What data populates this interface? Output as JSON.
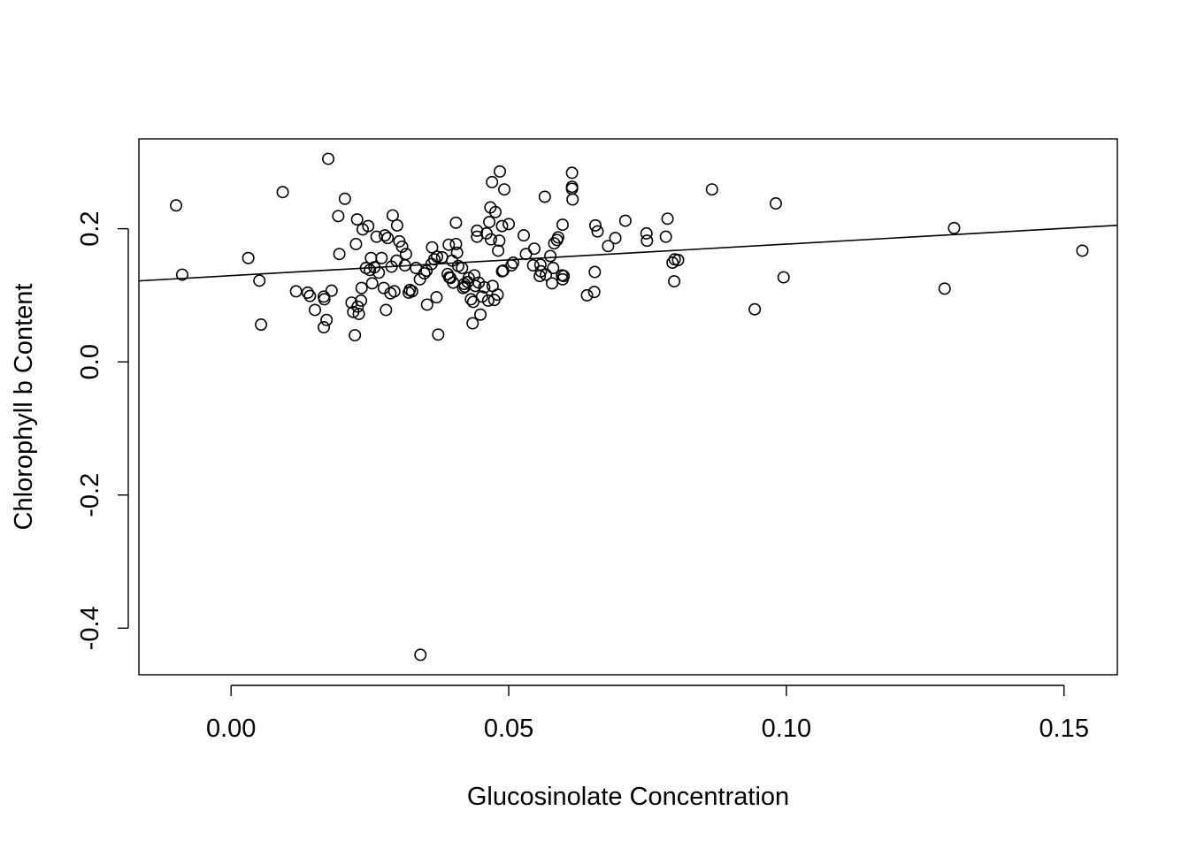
{
  "chart_data": {
    "type": "scatter",
    "title": "",
    "xlabel": "Glucosinolate Concentration",
    "ylabel": "Chlorophyll b Content",
    "xlim": [
      -0.0166,
      0.1596
    ],
    "ylim": [
      -0.47,
      0.335
    ],
    "x_ticks": [
      0.0,
      0.05,
      0.1,
      0.15
    ],
    "x_tick_labels": [
      "0.00",
      "0.05",
      "0.10",
      "0.15"
    ],
    "y_ticks": [
      -0.4,
      -0.2,
      0.0,
      0.2
    ],
    "y_tick_labels": [
      "-0.4",
      "-0.2",
      "0.0",
      "0.2"
    ],
    "grid": false,
    "regression_line": {
      "intercept": 0.1295,
      "slope": 0.4738
    },
    "points": {
      "x": [
        -0.0099,
        -0.0088,
        0.0031,
        0.0051,
        0.0054,
        0.0093,
        0.0117,
        0.0138,
        0.0142,
        0.0151,
        0.0167,
        0.0167,
        0.0168,
        0.0172,
        0.0175,
        0.0181,
        0.0193,
        0.0195,
        0.0205,
        0.0217,
        0.022,
        0.0223,
        0.0225,
        0.0227,
        0.0228,
        0.023,
        0.0234,
        0.0235,
        0.0237,
        0.0243,
        0.0247,
        0.025,
        0.0252,
        0.0254,
        0.0258,
        0.0262,
        0.0266,
        0.0271,
        0.0275,
        0.0277,
        0.0279,
        0.0282,
        0.0287,
        0.0289,
        0.0291,
        0.0294,
        0.0298,
        0.0299,
        0.0303,
        0.0308,
        0.0313,
        0.0315,
        0.032,
        0.0322,
        0.0326,
        0.0333,
        0.034,
        0.0341,
        0.0348,
        0.0352,
        0.0353,
        0.0361,
        0.0362,
        0.0366,
        0.037,
        0.0371,
        0.0373,
        0.038,
        0.039,
        0.0392,
        0.0393,
        0.0395,
        0.0398,
        0.04,
        0.0405,
        0.0405,
        0.0407,
        0.0409,
        0.0416,
        0.0418,
        0.042,
        0.0421,
        0.0426,
        0.0428,
        0.0432,
        0.0435,
        0.0436,
        0.0438,
        0.044,
        0.0443,
        0.0443,
        0.0446,
        0.0449,
        0.0452,
        0.0456,
        0.046,
        0.0463,
        0.0465,
        0.0467,
        0.0468,
        0.047,
        0.0471,
        0.0474,
        0.0476,
        0.048,
        0.0481,
        0.0483,
        0.0484,
        0.0488,
        0.0488,
        0.049,
        0.0492,
        0.05,
        0.0505,
        0.0508,
        0.0527,
        0.0531,
        0.0544,
        0.0546,
        0.0556,
        0.0557,
        0.0558,
        0.0565,
        0.0567,
        0.0575,
        0.0578,
        0.058,
        0.0582,
        0.0587,
        0.0589,
        0.0596,
        0.0597,
        0.0597,
        0.0599,
        0.0614,
        0.0614,
        0.0614,
        0.0615,
        0.0641,
        0.0654,
        0.0655,
        0.0656,
        0.066,
        0.0679,
        0.0692,
        0.071,
        0.0748,
        0.0749,
        0.0783,
        0.0786,
        0.0795,
        0.0798,
        0.0799,
        0.0805,
        0.0866,
        0.0943,
        0.0981,
        0.0995,
        0.1285,
        0.1302,
        0.1533
      ],
      "y": [
        0.235,
        0.131,
        0.156,
        0.122,
        0.056,
        0.255,
        0.106,
        0.104,
        0.099,
        0.078,
        0.052,
        0.098,
        0.094,
        0.063,
        0.305,
        0.107,
        0.219,
        0.162,
        0.245,
        0.089,
        0.075,
        0.04,
        0.177,
        0.214,
        0.083,
        0.072,
        0.092,
        0.111,
        0.199,
        0.141,
        0.204,
        0.138,
        0.156,
        0.118,
        0.142,
        0.188,
        0.134,
        0.156,
        0.111,
        0.19,
        0.078,
        0.186,
        0.103,
        0.143,
        0.22,
        0.106,
        0.152,
        0.205,
        0.181,
        0.173,
        0.145,
        0.162,
        0.104,
        0.108,
        0.106,
        0.141,
        0.124,
        -0.44,
        0.133,
        0.137,
        0.086,
        0.147,
        0.172,
        0.154,
        0.097,
        0.158,
        0.041,
        0.157,
        0.132,
        0.176,
        0.127,
        0.126,
        0.152,
        0.119,
        0.177,
        0.209,
        0.164,
        0.144,
        0.141,
        0.111,
        0.117,
        0.113,
        0.12,
        0.126,
        0.094,
        0.058,
        0.09,
        0.13,
        0.114,
        0.197,
        0.188,
        0.119,
        0.071,
        0.098,
        0.112,
        0.193,
        0.092,
        0.21,
        0.232,
        0.184,
        0.27,
        0.114,
        0.093,
        0.225,
        0.101,
        0.167,
        0.182,
        0.286,
        0.204,
        0.136,
        0.137,
        0.259,
        0.207,
        0.145,
        0.149,
        0.19,
        0.162,
        0.145,
        0.17,
        0.129,
        0.146,
        0.136,
        0.248,
        0.131,
        0.159,
        0.118,
        0.141,
        0.178,
        0.183,
        0.187,
        0.13,
        0.124,
        0.206,
        0.129,
        0.284,
        0.263,
        0.26,
        0.244,
        0.1,
        0.105,
        0.135,
        0.205,
        0.196,
        0.174,
        0.186,
        0.212,
        0.193,
        0.182,
        0.188,
        0.215,
        0.149,
        0.121,
        0.154,
        0.153,
        0.259,
        0.079,
        0.238,
        0.127,
        0.11,
        0.201,
        0.167
      ]
    }
  }
}
